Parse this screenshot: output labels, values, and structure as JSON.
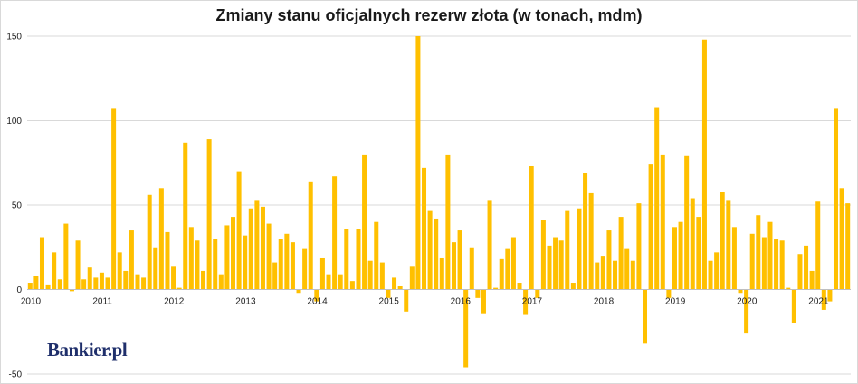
{
  "chart_data": {
    "type": "bar",
    "title": "Zmiany stanu oficjalnych rezerw złota (w tonach, mdm)",
    "ylim": [
      -50,
      150
    ],
    "yticks": [
      -50,
      0,
      50,
      100,
      150
    ],
    "grid": true,
    "color": "#ffc000",
    "x_tick_labels": [
      "2010",
      "2011",
      "2012",
      "2013",
      "2014",
      "2015",
      "2016",
      "2017",
      "2018",
      "2019",
      "2020",
      "2021"
    ],
    "start": "2010-01",
    "values": [
      4,
      8,
      31,
      3,
      22,
      6,
      39,
      -1,
      29,
      6,
      13,
      7,
      10,
      7,
      107,
      22,
      11,
      35,
      9,
      7,
      56,
      25,
      60,
      34,
      14,
      1,
      87,
      37,
      29,
      11,
      89,
      30,
      9,
      38,
      43,
      70,
      32,
      48,
      53,
      49,
      39,
      16,
      30,
      33,
      28,
      -2,
      24,
      64,
      -7,
      19,
      9,
      67,
      9,
      36,
      5,
      36,
      80,
      17,
      40,
      16,
      -5,
      7,
      2,
      -13,
      14,
      150,
      72,
      47,
      42,
      19,
      80,
      28,
      35,
      -46,
      25,
      -5,
      -14,
      53,
      1,
      18,
      24,
      31,
      4,
      -15,
      73,
      -5,
      41,
      26,
      31,
      29,
      47,
      4,
      48,
      69,
      57,
      16,
      20,
      35,
      17,
      43,
      24,
      17,
      51,
      -32,
      74,
      108,
      80,
      -5,
      37,
      40,
      79,
      54,
      43,
      148,
      17,
      22,
      58,
      53,
      37,
      -2,
      -26,
      33,
      44,
      31,
      40,
      30,
      29,
      1,
      -20,
      21,
      26,
      11,
      52,
      -12,
      -7,
      107,
      60,
      51
    ]
  },
  "branding": {
    "logo_text": "Bankier.pl"
  }
}
